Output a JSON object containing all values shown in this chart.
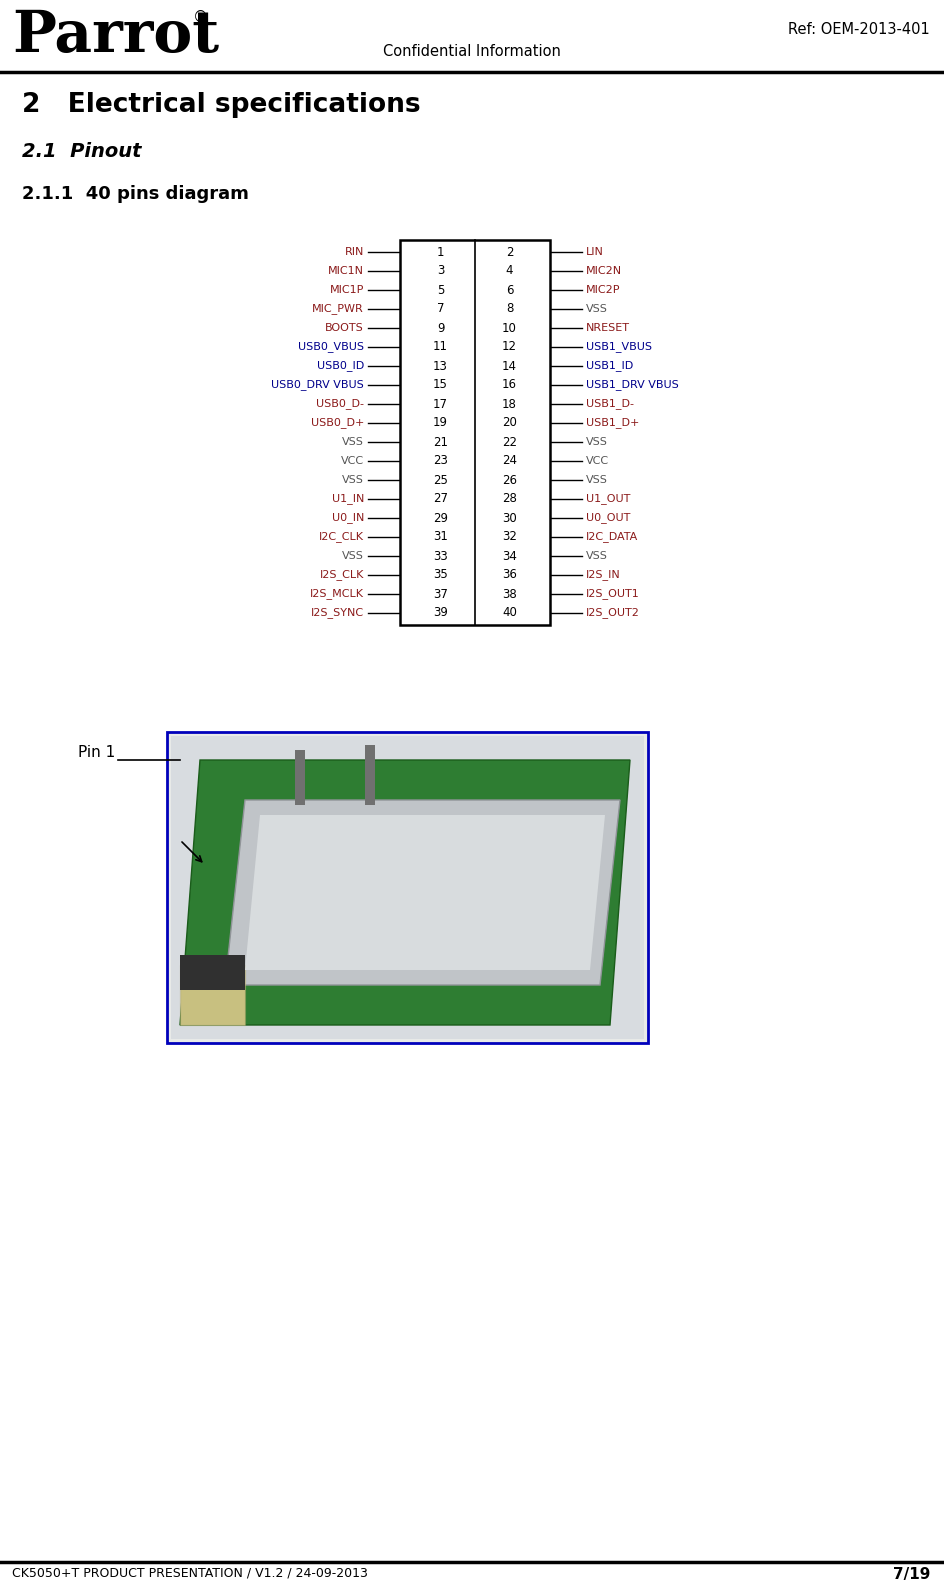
{
  "title_section": "2   Electrical specifications",
  "subtitle_section": "2.1  Pinout",
  "subsubtitle_section": "2.1.1  40 pins diagram",
  "header_center": "Confidential Information",
  "header_right": "Ref: OEM-2013-401",
  "footer_left": "CK5050+T PRODUCT PRESENTATION / V1.2 / 24-09-2013",
  "footer_right": "7/19",
  "left_pins": [
    {
      "num": 1,
      "name": "RIN",
      "color": "#8B1A1A"
    },
    {
      "num": 3,
      "name": "MIC1N",
      "color": "#8B1A1A"
    },
    {
      "num": 5,
      "name": "MIC1P",
      "color": "#8B1A1A"
    },
    {
      "num": 7,
      "name": "MIC_PWR",
      "color": "#8B1A1A"
    },
    {
      "num": 9,
      "name": "BOOTS",
      "color": "#8B1A1A"
    },
    {
      "num": 11,
      "name": "USB0_VBUS",
      "color": "#00008B"
    },
    {
      "num": 13,
      "name": "USB0_ID",
      "color": "#00008B"
    },
    {
      "num": 15,
      "name": "USB0_DRV VBUS",
      "color": "#00008B"
    },
    {
      "num": 17,
      "name": "USB0_D-",
      "color": "#8B1A1A"
    },
    {
      "num": 19,
      "name": "USB0_D+",
      "color": "#8B1A1A"
    },
    {
      "num": 21,
      "name": "VSS",
      "color": "#555555"
    },
    {
      "num": 23,
      "name": "VCC",
      "color": "#555555"
    },
    {
      "num": 25,
      "name": "VSS",
      "color": "#555555"
    },
    {
      "num": 27,
      "name": "U1_IN",
      "color": "#8B1A1A"
    },
    {
      "num": 29,
      "name": "U0_IN",
      "color": "#8B1A1A"
    },
    {
      "num": 31,
      "name": "I2C_CLK",
      "color": "#8B1A1A"
    },
    {
      "num": 33,
      "name": "VSS",
      "color": "#555555"
    },
    {
      "num": 35,
      "name": "I2S_CLK",
      "color": "#8B1A1A"
    },
    {
      "num": 37,
      "name": "I2S_MCLK",
      "color": "#8B1A1A"
    },
    {
      "num": 39,
      "name": "I2S_SYNC",
      "color": "#8B1A1A"
    }
  ],
  "right_pins": [
    {
      "num": 2,
      "name": "LIN",
      "color": "#8B1A1A"
    },
    {
      "num": 4,
      "name": "MIC2N",
      "color": "#8B1A1A"
    },
    {
      "num": 6,
      "name": "MIC2P",
      "color": "#8B1A1A"
    },
    {
      "num": 8,
      "name": "VSS",
      "color": "#555555"
    },
    {
      "num": 10,
      "name": "NRESET",
      "color": "#8B1A1A"
    },
    {
      "num": 12,
      "name": "USB1_VBUS",
      "color": "#00008B"
    },
    {
      "num": 14,
      "name": "USB1_ID",
      "color": "#00008B"
    },
    {
      "num": 16,
      "name": "USB1_DRV VBUS",
      "color": "#00008B"
    },
    {
      "num": 18,
      "name": "USB1_D-",
      "color": "#8B1A1A"
    },
    {
      "num": 20,
      "name": "USB1_D+",
      "color": "#8B1A1A"
    },
    {
      "num": 22,
      "name": "VSS",
      "color": "#555555"
    },
    {
      "num": 24,
      "name": "VCC",
      "color": "#555555"
    },
    {
      "num": 26,
      "name": "VSS",
      "color": "#555555"
    },
    {
      "num": 28,
      "name": "U1_OUT",
      "color": "#8B1A1A"
    },
    {
      "num": 30,
      "name": "U0_OUT",
      "color": "#8B1A1A"
    },
    {
      "num": 32,
      "name": "I2C_DATA",
      "color": "#8B1A1A"
    },
    {
      "num": 34,
      "name": "VSS",
      "color": "#555555"
    },
    {
      "num": 36,
      "name": "I2S_IN",
      "color": "#8B1A1A"
    },
    {
      "num": 38,
      "name": "I2S_OUT1",
      "color": "#8B1A1A"
    },
    {
      "num": 40,
      "name": "I2S_OUT2",
      "color": "#8B1A1A"
    }
  ],
  "bg_color": "#FFFFFF"
}
